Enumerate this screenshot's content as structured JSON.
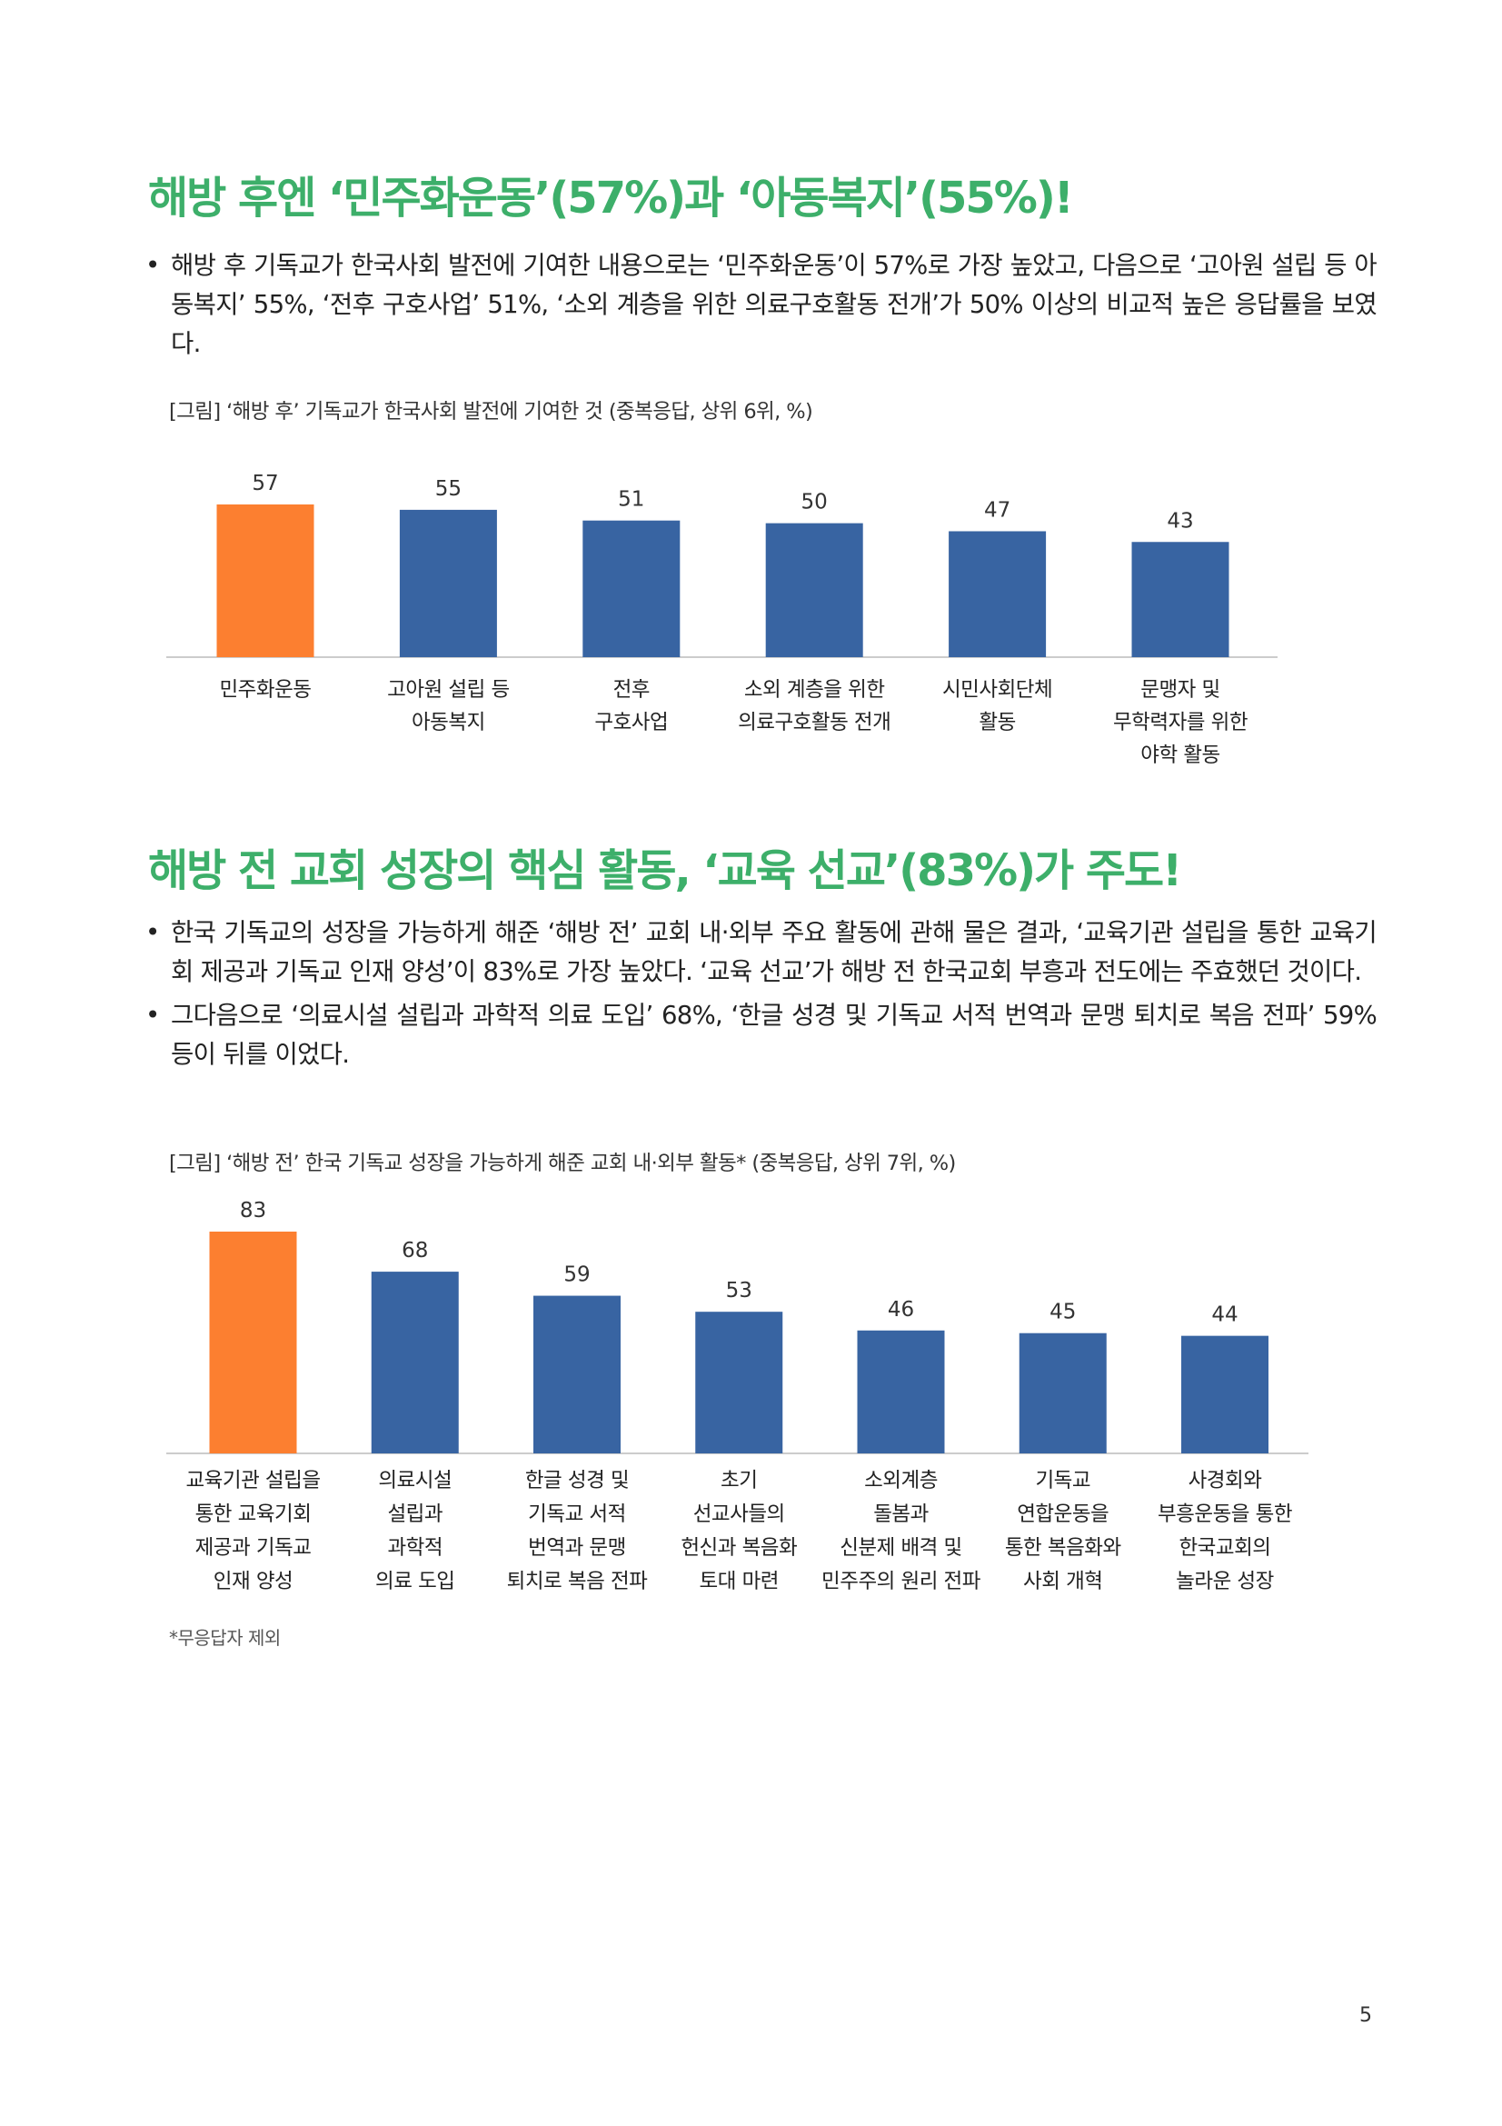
{
  "section1": {
    "heading": "해방 후엔 ‘민주화운동’(57%)과 ‘아동복지’(55%)!",
    "bullets": [
      "해방 후 기독교가 한국사회 발전에 기여한 내용으로는 ‘민주화운동’이 57%로 가장 높았고, 다음으로 ‘고아원 설립 등 아동복지’ 55%, ‘전후 구호사업’ 51%, ‘소외 계층을 위한 의료구호활동 전개’가 50% 이상의 비교적 높은 응답률을 보였다."
    ],
    "caption": "[그림] ‘해방 후’ 기독교가 한국사회 발전에 기여한 것 (중복응답, 상위 6위, %)"
  },
  "section2": {
    "heading": "해방 전 교회 성장의 핵심 활동, ‘교육 선교’(83%)가 주도!",
    "bullets": [
      "한국 기독교의 성장을 가능하게 해준 ‘해방 전’ 교회 내·외부 주요 활동에 관해 물은 결과, ‘교육기관 설립을 통한 교육기회 제공과 기독교 인재 양성’이 83%로 가장 높았다. ‘교육 선교’가 해방 전 한국교회 부흥과 전도에는 주효했던 것이다.",
      "그다음으로 ‘의료시설 설립과 과학적 의료 도입’ 68%, ‘한글 성경 및 기독교 서적 번역과 문맹 퇴치로 복음 전파’ 59% 등이 뒤를 이었다."
    ],
    "caption": "[그림] ‘해방 전’ 한국 기독교 성장을 가능하게 해준 교회 내·외부 활동* (중복응답, 상위 7위, %)",
    "footnote": "*무응답자 제외"
  },
  "bullet_symbol": "•",
  "page_number": "5",
  "colors": {
    "heading": "#3daf6a",
    "highlight_bar": "#fc7f30",
    "bar": "#3864a2",
    "axis": "#cccccc"
  },
  "chart_data": [
    {
      "type": "bar",
      "title": "",
      "categories": [
        [
          "민주화운동"
        ],
        [
          "고아원 설립 등",
          "아동복지"
        ],
        [
          "전후",
          "구호사업"
        ],
        [
          "소외 계층을 위한",
          "의료구호활동 전개"
        ],
        [
          "시민사회단체",
          "활동"
        ],
        [
          "문맹자 및",
          "무학력자를 위한",
          "야학 활동"
        ]
      ],
      "values": [
        57,
        55,
        51,
        50,
        47,
        43
      ],
      "highlight_index": 0,
      "ylim": [
        0,
        100
      ],
      "grid": false,
      "legend": "none"
    },
    {
      "type": "bar",
      "title": "",
      "categories": [
        [
          "교육기관 설립을",
          "통한 교육기회",
          "제공과 기독교",
          "인재 양성"
        ],
        [
          "의료시설",
          "설립과",
          "과학적",
          "의료 도입"
        ],
        [
          "한글 성경 및",
          "기독교 서적",
          "번역과 문맹",
          "퇴치로 복음 전파"
        ],
        [
          "초기",
          "선교사들의",
          "헌신과 복음화",
          "토대 마련"
        ],
        [
          "소외계층",
          "돌봄과",
          "신분제 배격 및",
          "민주주의 원리 전파"
        ],
        [
          "기독교",
          "연합운동을",
          "통한 복음화와",
          "사회 개혁"
        ],
        [
          "사경회와",
          "부흥운동을 통한",
          "한국교회의",
          "놀라운 성장"
        ]
      ],
      "values": [
        83,
        68,
        59,
        53,
        46,
        45,
        44
      ],
      "highlight_index": 0,
      "ylim": [
        0,
        100
      ],
      "grid": false,
      "legend": "none"
    }
  ]
}
